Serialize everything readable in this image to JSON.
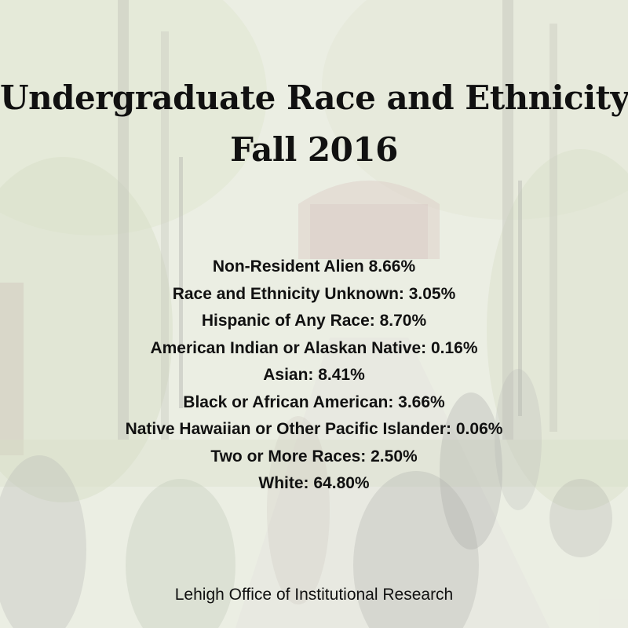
{
  "title": {
    "line1": "Undergraduate Race and Ethnicity",
    "line2": "Fall 2016"
  },
  "items": [
    "Non-Resident Alien 8.66%",
    "Race and Ethnicity Unknown: 3.05%",
    "Hispanic of Any Race: 8.70%",
    "American Indian or Alaskan Native: 0.16%",
    "Asian: 8.41%",
    "Black or African American: 3.66%",
    "Native Hawaiian or Other Pacific Islander: 0.06%",
    "Two or More Races: 2.50%",
    "White: 64.80%"
  ],
  "footer": "Lehigh Office of Institutional Research"
}
